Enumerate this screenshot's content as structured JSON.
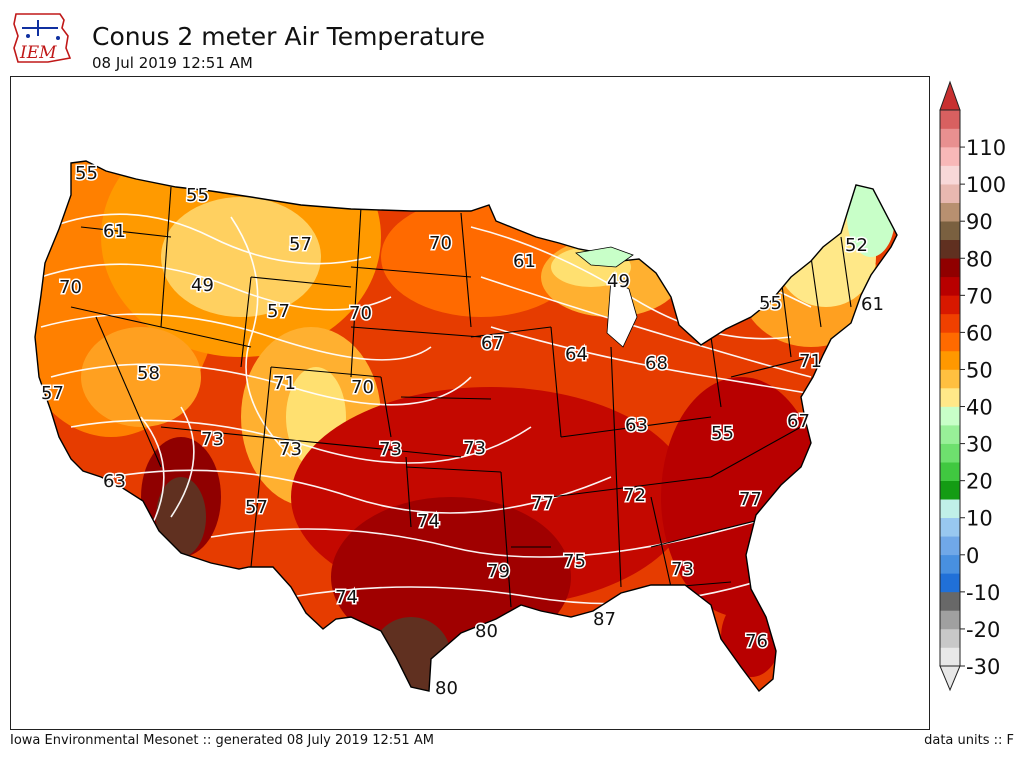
{
  "header": {
    "title": "Conus 2 meter Air Temperature",
    "subtitle": "08 Jul 2019 12:51 AM",
    "logo_text": "IEM"
  },
  "footer": {
    "left": "Iowa Environmental Mesonet :: generated 08 July 2019 12:51 AM",
    "right": "data units :: F"
  },
  "colorbar": {
    "tick_labels": [
      "110",
      "100",
      "90",
      "80",
      "70",
      "60",
      "50",
      "40",
      "30",
      "20",
      "10",
      "0",
      "-10",
      "-20",
      "-30"
    ],
    "tick_values": [
      110,
      100,
      90,
      80,
      70,
      60,
      50,
      40,
      30,
      20,
      10,
      0,
      -10,
      -20,
      -30
    ],
    "range": [
      -30,
      120
    ],
    "step": 5,
    "colors": [
      "#e8e8e8",
      "#c8c8c8",
      "#a0a0a0",
      "#686868",
      "#2070d8",
      "#4890e0",
      "#70a8e8",
      "#98c8f0",
      "#c0f0e8",
      "#149c14",
      "#40c840",
      "#6ee06e",
      "#98f098",
      "#c8ffc8",
      "#ffe888",
      "#ffc040",
      "#ff9800",
      "#ff6a00",
      "#f04000",
      "#d81800",
      "#b80000",
      "#900000",
      "#603020",
      "#7a6040",
      "#b89070",
      "#e8b8b0",
      "#f8d8d8",
      "#f8b8b8",
      "#e89090",
      "#d86060"
    ]
  },
  "map_labels": [
    {
      "text": "55"
    },
    {
      "text": "55"
    },
    {
      "text": "61"
    },
    {
      "text": "57"
    },
    {
      "text": "70"
    },
    {
      "text": "61"
    },
    {
      "text": "49"
    },
    {
      "text": "52"
    },
    {
      "text": "70"
    },
    {
      "text": "49"
    },
    {
      "text": "57"
    },
    {
      "text": "70"
    },
    {
      "text": "55"
    },
    {
      "text": "61"
    },
    {
      "text": "67"
    },
    {
      "text": "64"
    },
    {
      "text": "68"
    },
    {
      "text": "57"
    },
    {
      "text": "58"
    },
    {
      "text": "71"
    },
    {
      "text": "70"
    },
    {
      "text": "71"
    },
    {
      "text": "73"
    },
    {
      "text": "63"
    },
    {
      "text": "55"
    },
    {
      "text": "67"
    },
    {
      "text": "73"
    },
    {
      "text": "73"
    },
    {
      "text": "73"
    },
    {
      "text": "63"
    },
    {
      "text": "57"
    },
    {
      "text": "77"
    },
    {
      "text": "72"
    },
    {
      "text": "77"
    },
    {
      "text": "74"
    },
    {
      "text": "75"
    },
    {
      "text": "79"
    },
    {
      "text": "73"
    },
    {
      "text": "74"
    },
    {
      "text": "80"
    },
    {
      "text": "87"
    },
    {
      "text": "76"
    },
    {
      "text": "80"
    }
  ]
}
